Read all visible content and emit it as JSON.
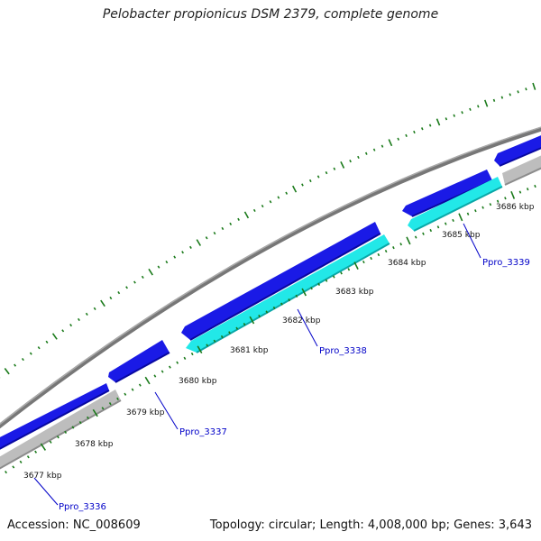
{
  "title": "Pelobacter propionicus DSM 2379, complete genome",
  "footer": {
    "accession": "Accession: NC_008609",
    "summary": "Topology: circular; Length: 4,008,000 bp; Genes: 3,643"
  },
  "colors": {
    "backbone": "#7a7a7a",
    "forward_gene": "#1a1ae6",
    "reverse_gene": "#22e8e8",
    "reverse_gene_gray": "#bdbdbd",
    "gc_ticks": "#1a7a1a",
    "label": "#0000c8"
  },
  "tick_labels": [
    "3677 kbp",
    "3678 kbp",
    "3679 kbp",
    "3680 kbp",
    "3681 kbp",
    "3682 kbp",
    "3683 kbp",
    "3684 kbp",
    "3685 kbp",
    "3686 kbp"
  ],
  "genes": [
    {
      "name": "Ppro_3336"
    },
    {
      "name": "Ppro_3337"
    },
    {
      "name": "Ppro_3338"
    },
    {
      "name": "Ppro_3339"
    }
  ]
}
